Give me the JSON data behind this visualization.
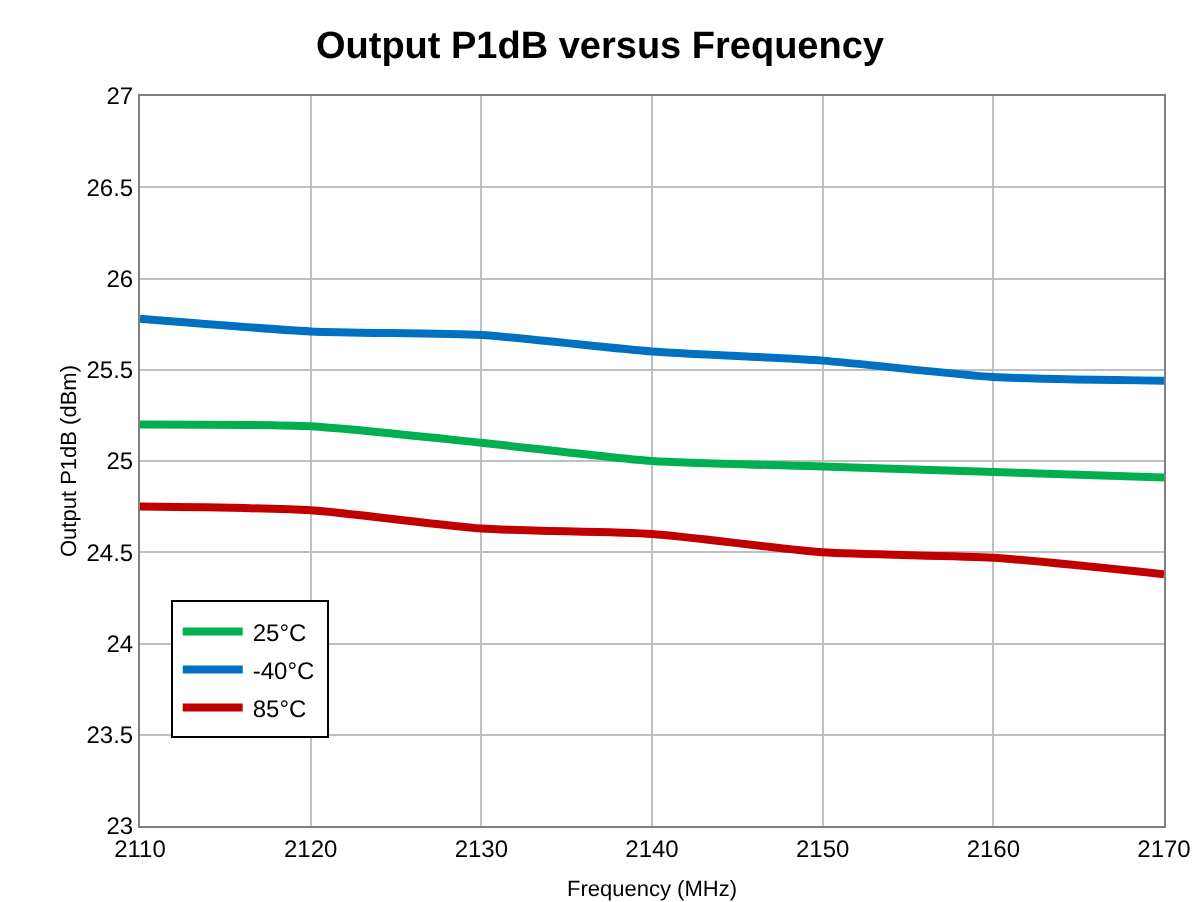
{
  "chart_data": {
    "type": "line",
    "title": "Output P1dB versus Frequency",
    "xlabel": "Frequency (MHz)",
    "ylabel": "Output P1dB (dBm)",
    "x": [
      2110,
      2120,
      2130,
      2140,
      2150,
      2160,
      2170
    ],
    "series": [
      {
        "name": "25°C",
        "color": "#00b050",
        "values": [
          25.2,
          25.19,
          25.1,
          25.0,
          24.97,
          24.94,
          24.91
        ]
      },
      {
        "name": "-40°C",
        "color": "#0070c0",
        "values": [
          25.78,
          25.71,
          25.69,
          25.6,
          25.55,
          25.46,
          25.44
        ]
      },
      {
        "name": "85°C",
        "color": "#c00000",
        "values": [
          24.75,
          24.73,
          24.63,
          24.6,
          24.5,
          24.47,
          24.38
        ]
      }
    ],
    "xlim": [
      2110,
      2170
    ],
    "xticks": [
      2110,
      2120,
      2130,
      2140,
      2150,
      2160,
      2170
    ],
    "ylim": [
      23,
      27
    ],
    "yticks": [
      23,
      23.5,
      24,
      24.5,
      25,
      25.5,
      26,
      26.5,
      27
    ],
    "grid": true,
    "legend": "bottom left",
    "marker": "none",
    "line_style": "solid"
  }
}
